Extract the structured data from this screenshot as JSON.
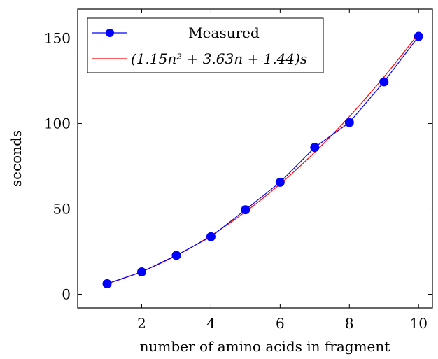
{
  "chart_data": {
    "type": "line",
    "xlabel": "number of amino acids in fragment",
    "ylabel": "seconds",
    "xlim": [
      0.15,
      10.4
    ],
    "ylim": [
      -8,
      167
    ],
    "x_ticks": [
      2,
      4,
      6,
      8,
      10
    ],
    "x_tick_labels": [
      "2",
      "4",
      "6",
      "8",
      "10"
    ],
    "y_ticks": [
      0,
      50,
      100,
      150
    ],
    "y_tick_labels": [
      "0",
      "50",
      "100",
      "150"
    ],
    "grid": false,
    "legend_position": "top-left",
    "series": [
      {
        "name": "Measured",
        "color": "#0000ff",
        "marker": "circle",
        "x": [
          1,
          2,
          3,
          4,
          5,
          6,
          7,
          8,
          9,
          10
        ],
        "y": [
          6.2,
          13.1,
          22.8,
          33.7,
          49.5,
          65.6,
          86.0,
          100.6,
          124.4,
          151.0
        ]
      },
      {
        "name": "(1.15n² + 3.63n + 1.44)s",
        "color": "#ff0000",
        "marker": "none",
        "formula": {
          "a": 1.15,
          "b": 3.63,
          "c": 1.44
        },
        "x_range": [
          1,
          10
        ]
      }
    ]
  }
}
